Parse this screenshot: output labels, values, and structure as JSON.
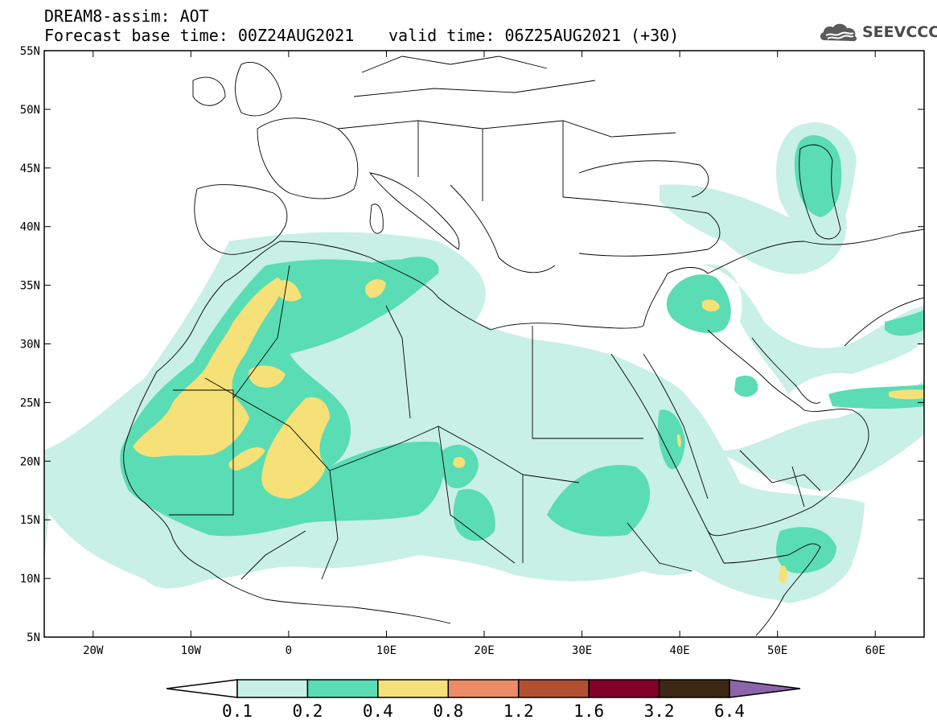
{
  "header": {
    "model_line": "DREAM8-assim: AOT",
    "base_time_line": "Forecast base time: 00Z24AUG2021",
    "valid_time_line": "valid time: 06Z25AUG2021 (+30)"
  },
  "logo": {
    "text": "SEEVCCC",
    "icon": "cloud-icon"
  },
  "map": {
    "lon_range": [
      -25,
      65
    ],
    "lat_range": [
      5,
      55
    ],
    "lat_ticks": [
      "55N",
      "50N",
      "45N",
      "40N",
      "35N",
      "30N",
      "25N",
      "20N",
      "15N",
      "10N",
      "5N"
    ],
    "lon_ticks": [
      "20W",
      "10W",
      "0",
      "10E",
      "20E",
      "30E",
      "40E",
      "50E",
      "60E"
    ]
  },
  "colorbar": {
    "labels": [
      "0.1",
      "0.2",
      "0.4",
      "0.8",
      "1.2",
      "1.6",
      "3.2",
      "6.4"
    ],
    "colors": [
      "#ffffff",
      "#c8f0e6",
      "#5adcb4",
      "#f5e178",
      "#eb8c64",
      "#b45032",
      "#820028",
      "#3c2814",
      "#8c64aa"
    ]
  }
}
